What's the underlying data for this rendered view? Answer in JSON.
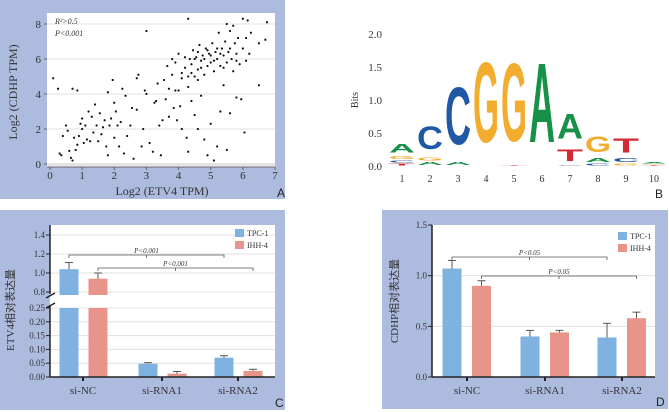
{
  "colors": {
    "panel_bg": "#adbcde",
    "tpc1": "#7fb2e0",
    "ihh4": "#e8948a",
    "logo_A": "#179048",
    "logo_C": "#2058a6",
    "logo_G": "#f2ac2e",
    "logo_T": "#d42a35"
  },
  "chart_data": [
    {
      "panel": "A",
      "type": "scatter",
      "xlabel": "Log2 (ETV4 TPM)",
      "ylabel": "Log2 (CDHP TPM)",
      "xlim": [
        0,
        7
      ],
      "ylim": [
        0,
        8
      ],
      "xticks": [
        "0",
        "1",
        "2",
        "3",
        "4",
        "5",
        "6",
        "7"
      ],
      "yticks": [
        "0",
        "2",
        "4",
        "6",
        "8"
      ],
      "grid": "horizontal",
      "annotations": [
        "R²>0.5",
        "P<0.001"
      ],
      "points": [
        [
          0.1,
          4.9
        ],
        [
          0.25,
          4.3
        ],
        [
          0.7,
          4.3
        ],
        [
          0.85,
          4.2
        ],
        [
          0.3,
          0.6
        ],
        [
          0.35,
          0.5
        ],
        [
          0.4,
          1.6
        ],
        [
          0.5,
          2.2
        ],
        [
          0.55,
          1.9
        ],
        [
          0.6,
          0.75
        ],
        [
          0.65,
          0.35
        ],
        [
          0.7,
          0.2
        ],
        [
          0.75,
          1.5
        ],
        [
          0.8,
          0.8
        ],
        [
          0.85,
          1.1
        ],
        [
          0.9,
          1.6
        ],
        [
          0.95,
          2.3
        ],
        [
          1.0,
          2.0
        ],
        [
          1.0,
          2.6
        ],
        [
          1.05,
          1.2
        ],
        [
          1.1,
          2.2
        ],
        [
          1.15,
          1.4
        ],
        [
          1.2,
          3.0
        ],
        [
          1.25,
          1.3
        ],
        [
          1.3,
          2.7
        ],
        [
          1.35,
          1.8
        ],
        [
          1.4,
          3.4
        ],
        [
          1.45,
          2.2
        ],
        [
          1.5,
          1.3
        ],
        [
          1.55,
          2.9
        ],
        [
          1.6,
          1.7
        ],
        [
          1.65,
          2.1
        ],
        [
          1.7,
          2.5
        ],
        [
          1.75,
          1.0
        ],
        [
          1.8,
          0.5
        ],
        [
          1.8,
          4.1
        ],
        [
          1.85,
          2.2
        ],
        [
          1.9,
          2.6
        ],
        [
          1.95,
          4.8
        ],
        [
          2.0,
          3.5
        ],
        [
          2.0,
          1.5
        ],
        [
          2.05,
          3.0
        ],
        [
          2.1,
          2.2
        ],
        [
          2.15,
          1.0
        ],
        [
          2.2,
          2.4
        ],
        [
          2.25,
          4.3
        ],
        [
          2.3,
          0.6
        ],
        [
          2.35,
          3.9
        ],
        [
          2.4,
          1.6
        ],
        [
          2.5,
          2.2
        ],
        [
          2.55,
          3.2
        ],
        [
          2.6,
          0.3
        ],
        [
          2.7,
          3.1
        ],
        [
          2.7,
          4.9
        ],
        [
          2.75,
          5.1
        ],
        [
          2.85,
          1.0
        ],
        [
          2.9,
          2.0
        ],
        [
          2.95,
          4.2
        ],
        [
          3.0,
          4.0
        ],
        [
          3.0,
          7.6
        ],
        [
          3.1,
          1.2
        ],
        [
          3.2,
          0.7
        ],
        [
          3.25,
          3.5
        ],
        [
          3.3,
          3.6
        ],
        [
          3.35,
          4.6
        ],
        [
          3.4,
          2.2
        ],
        [
          3.45,
          0.5
        ],
        [
          3.5,
          2.5
        ],
        [
          3.55,
          4.8
        ],
        [
          3.6,
          3.7
        ],
        [
          3.65,
          5.6
        ],
        [
          3.7,
          4.3
        ],
        [
          3.7,
          2.7
        ],
        [
          3.8,
          5.1
        ],
        [
          3.85,
          3.2
        ],
        [
          3.9,
          5.8
        ],
        [
          3.95,
          2.5
        ],
        [
          4.0,
          4.2
        ],
        [
          4.0,
          6.3
        ],
        [
          4.05,
          3.3
        ],
        [
          4.1,
          5.2
        ],
        [
          4.1,
          2.0
        ],
        [
          4.2,
          5.5
        ],
        [
          4.25,
          1.5
        ],
        [
          4.3,
          0.7
        ],
        [
          4.3,
          8.3
        ],
        [
          4.3,
          4.4
        ],
        [
          4.35,
          6.0
        ],
        [
          4.4,
          5.7
        ],
        [
          4.4,
          3.6
        ],
        [
          4.45,
          6.5
        ],
        [
          4.5,
          5.0
        ],
        [
          4.5,
          2.8
        ],
        [
          4.55,
          6.1
        ],
        [
          4.6,
          5.4
        ],
        [
          4.6,
          2.0
        ],
        [
          4.65,
          6.8
        ],
        [
          4.7,
          5.9
        ],
        [
          4.7,
          3.9
        ],
        [
          4.75,
          6.2
        ],
        [
          4.8,
          5.1
        ],
        [
          4.8,
          1.4
        ],
        [
          4.85,
          6.6
        ],
        [
          4.9,
          5.6
        ],
        [
          4.9,
          0.5
        ],
        [
          4.95,
          6.3
        ],
        [
          5.0,
          5.8
        ],
        [
          5.0,
          2.3
        ],
        [
          5.05,
          6.9
        ],
        [
          5.1,
          5.3
        ],
        [
          5.1,
          0.2
        ],
        [
          5.15,
          6.4
        ],
        [
          5.2,
          6.0
        ],
        [
          5.2,
          1.0
        ],
        [
          5.25,
          7.5
        ],
        [
          5.3,
          5.6
        ],
        [
          5.3,
          3.0
        ],
        [
          5.35,
          6.6
        ],
        [
          5.4,
          6.2
        ],
        [
          5.4,
          4.5
        ],
        [
          5.45,
          7.0
        ],
        [
          5.5,
          5.8
        ],
        [
          5.5,
          0.8
        ],
        [
          5.55,
          6.4
        ],
        [
          5.6,
          2.9
        ],
        [
          5.6,
          7.6
        ],
        [
          5.65,
          6.0
        ],
        [
          5.7,
          5.3
        ],
        [
          5.75,
          6.9
        ],
        [
          5.8,
          3.8
        ],
        [
          5.8,
          6.3
        ],
        [
          5.85,
          7.2
        ],
        [
          5.9,
          5.7
        ],
        [
          5.95,
          3.7
        ],
        [
          6.0,
          8.3
        ],
        [
          6.0,
          6.6
        ],
        [
          6.05,
          1.8
        ],
        [
          6.1,
          5.9
        ],
        [
          6.15,
          8.2
        ],
        [
          6.2,
          6.3
        ],
        [
          6.25,
          7.5
        ],
        [
          6.5,
          6.9
        ],
        [
          6.5,
          4.5
        ],
        [
          6.7,
          7.1
        ],
        [
          6.75,
          8.1
        ],
        [
          4.2,
          6.1
        ],
        [
          4.5,
          6.0
        ],
        [
          4.6,
          6.4
        ],
        [
          4.8,
          6.0
        ],
        [
          5.0,
          6.2
        ],
        [
          5.2,
          6.6
        ],
        [
          4.4,
          5.2
        ],
        [
          4.7,
          5.5
        ],
        [
          4.9,
          6.5
        ],
        [
          5.1,
          5.9
        ],
        [
          5.3,
          6.3
        ],
        [
          4.3,
          5.0
        ],
        [
          5.6,
          6.6
        ],
        [
          5.8,
          5.9
        ],
        [
          4.6,
          4.8
        ],
        [
          5.4,
          5.5
        ],
        [
          3.8,
          6.0
        ],
        [
          3.9,
          4.2
        ],
        [
          4.1,
          4.9
        ],
        [
          5.7,
          7.9
        ],
        [
          5.5,
          8.0
        ],
        [
          6.1,
          7.2
        ]
      ]
    },
    {
      "panel": "B",
      "type": "sequence-logo",
      "ylabel": "Bits",
      "ylim": [
        0,
        2
      ],
      "yticks": [
        "0.0",
        "0.5",
        "1.0",
        "1.5",
        "2.0"
      ],
      "positions": [
        "1",
        "2",
        "3",
        "4",
        "5",
        "6",
        "7",
        "8",
        "9",
        "10"
      ],
      "stacks": [
        [
          [
            "T",
            0.04
          ],
          [
            "C",
            0.05
          ],
          [
            "G",
            0.08
          ],
          [
            "A",
            0.2
          ]
        ],
        [
          [
            "A",
            0.07
          ],
          [
            "G",
            0.08
          ],
          [
            "C",
            0.55
          ]
        ],
        [
          [
            "A",
            0.07
          ],
          [
            "C",
            1.38
          ]
        ],
        [
          [
            "G",
            1.93
          ]
        ],
        [
          [
            "T",
            0.02
          ],
          [
            "G",
            1.88
          ]
        ],
        [
          [
            "A",
            1.92
          ]
        ],
        [
          [
            "C",
            0.02
          ],
          [
            "T",
            0.28
          ],
          [
            "A",
            0.6
          ]
        ],
        [
          [
            "C",
            0.04
          ],
          [
            "A",
            0.1
          ],
          [
            "G",
            0.38
          ]
        ],
        [
          [
            "G",
            0.04
          ],
          [
            "C",
            0.1
          ],
          [
            "T",
            0.35
          ]
        ],
        [
          [
            "T",
            0.01
          ],
          [
            "G",
            0.02
          ],
          [
            "A",
            0.03
          ]
        ]
      ]
    },
    {
      "panel": "C",
      "type": "bar",
      "ylabel": "ETV4相对表达量",
      "categories": [
        "si-NC",
        "si-RNA1",
        "si-RNA2"
      ],
      "axis_break": [
        0.25,
        0.8
      ],
      "yticks_lower": [
        "0.00",
        "0.05",
        "0.10",
        "0.15",
        "0.20",
        "0.25"
      ],
      "yticks_upper": [
        "0.8",
        "1.0",
        "1.2",
        "1.4"
      ],
      "series": [
        {
          "name": "TPC-1",
          "values": [
            1.04,
            0.048,
            0.07
          ],
          "errors": [
            0.07,
            0.004,
            0.007
          ]
        },
        {
          "name": "IHH-4",
          "values": [
            0.94,
            0.012,
            0.022
          ],
          "errors": [
            0.06,
            0.008,
            0.006
          ]
        }
      ],
      "legend": "top-right",
      "significance": [
        {
          "label": "P<0.001",
          "from": [
            0,
            0
          ],
          "to": [
            2,
            0
          ]
        },
        {
          "label": "P<0.001",
          "from": [
            0,
            1
          ],
          "to": [
            2,
            1
          ]
        }
      ]
    },
    {
      "panel": "D",
      "type": "bar",
      "ylabel": "CDHP相对表达量",
      "categories": [
        "si-NC",
        "si-RNA1",
        "si-RNA2"
      ],
      "ylim": [
        0,
        1.5
      ],
      "yticks": [
        "0.0",
        "0.5",
        "1.0",
        "1.5"
      ],
      "series": [
        {
          "name": "TPC-1",
          "values": [
            1.07,
            0.4,
            0.39
          ],
          "errors": [
            0.08,
            0.06,
            0.14
          ]
        },
        {
          "name": "IHH-4",
          "values": [
            0.9,
            0.44,
            0.58
          ],
          "errors": [
            0.05,
            0.02,
            0.06
          ]
        }
      ],
      "legend": "top-right",
      "significance": [
        {
          "label": "P<0.05",
          "from": [
            0,
            0
          ],
          "to": [
            2,
            0
          ]
        },
        {
          "label": "P<0.05",
          "from": [
            0,
            1
          ],
          "to": [
            2,
            1
          ]
        }
      ]
    }
  ],
  "panel_labels": [
    "A",
    "B",
    "C",
    "D"
  ]
}
